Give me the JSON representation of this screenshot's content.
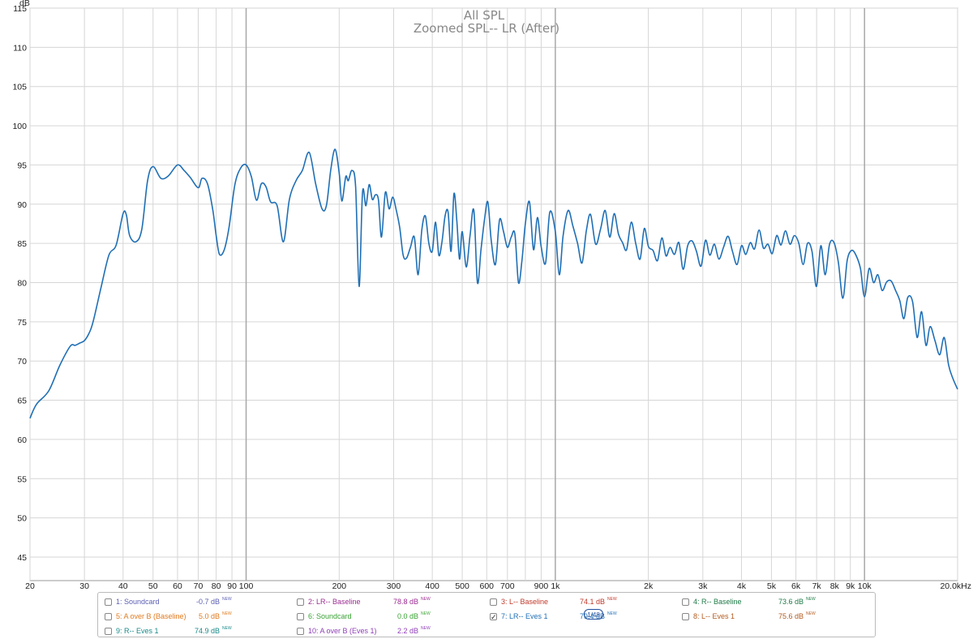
{
  "chart_data": {
    "type": "line",
    "title": "All SPL",
    "subtitle": "Zoomed SPL-- LR (After)",
    "ylabel": "dB",
    "xscale": "log",
    "xlim": [
      20,
      20000
    ],
    "ylim": [
      42,
      115
    ],
    "grid": true,
    "y_ticks": [
      45,
      50,
      55,
      60,
      65,
      70,
      75,
      80,
      85,
      90,
      95,
      100,
      105,
      110,
      115
    ],
    "x_ticks": [
      {
        "v": 20,
        "label": "20"
      },
      {
        "v": 30,
        "label": "30"
      },
      {
        "v": 40,
        "label": "40"
      },
      {
        "v": 50,
        "label": "50"
      },
      {
        "v": 60,
        "label": "60"
      },
      {
        "v": 70,
        "label": "70"
      },
      {
        "v": 80,
        "label": "80"
      },
      {
        "v": 90,
        "label": "90"
      },
      {
        "v": 100,
        "label": "100"
      },
      {
        "v": 200,
        "label": "200"
      },
      {
        "v": 300,
        "label": "300"
      },
      {
        "v": 400,
        "label": "400"
      },
      {
        "v": 500,
        "label": "500"
      },
      {
        "v": 600,
        "label": "600"
      },
      {
        "v": 700,
        "label": "700"
      },
      {
        "v": 900,
        "label": "900"
      },
      {
        "v": 1000,
        "label": "1k"
      },
      {
        "v": 2000,
        "label": "2k"
      },
      {
        "v": 3000,
        "label": "3k"
      },
      {
        "v": 4000,
        "label": "4k"
      },
      {
        "v": 5000,
        "label": "5k"
      },
      {
        "v": 6000,
        "label": "6k"
      },
      {
        "v": 7000,
        "label": "7k"
      },
      {
        "v": 8000,
        "label": "8k"
      },
      {
        "v": 9000,
        "label": "9k"
      },
      {
        "v": 10000,
        "label": "10k"
      },
      {
        "v": 20000,
        "label": "20.0kHz"
      }
    ],
    "series": [
      {
        "color": "#1f6fb5",
        "x": [
          20,
          21,
          23,
          25,
          27,
          28,
          29,
          30,
          31,
          32,
          34,
          36,
          38,
          40,
          41,
          42,
          44,
          46,
          48,
          50,
          53,
          56,
          60,
          63,
          66,
          70,
          72,
          75,
          78,
          80,
          82,
          85,
          88,
          92,
          96,
          100,
          104,
          108,
          112,
          116,
          120,
          126,
          132,
          138,
          145,
          152,
          160,
          168,
          176,
          182,
          188,
          194,
          200,
          204,
          210,
          214,
          220,
          226,
          232,
          238,
          244,
          250,
          256,
          262,
          268,
          274,
          282,
          290,
          298,
          306,
          314,
          322,
          330,
          340,
          350,
          360,
          370,
          380,
          390,
          400,
          410,
          420,
          430,
          440,
          450,
          460,
          470,
          480,
          490,
          500,
          515,
          530,
          545,
          560,
          575,
          590,
          605,
          620,
          640,
          660,
          680,
          700,
          720,
          740,
          760,
          780,
          800,
          825,
          850,
          875,
          900,
          930,
          960,
          1000,
          1030,
          1060,
          1100,
          1140,
          1180,
          1220,
          1260,
          1300,
          1350,
          1400,
          1450,
          1500,
          1550,
          1600,
          1650,
          1700,
          1760,
          1820,
          1880,
          1940,
          2000,
          2070,
          2140,
          2210,
          2280,
          2350,
          2430,
          2510,
          2590,
          2680,
          2770,
          2860,
          2960,
          3060,
          3160,
          3270,
          3380,
          3500,
          3620,
          3740,
          3870,
          4000,
          4130,
          4270,
          4410,
          4560,
          4710,
          4870,
          5030,
          5200,
          5370,
          5550,
          5740,
          5930,
          6130,
          6330,
          6540,
          6760,
          6990,
          7220,
          7460,
          7710,
          7970,
          8230,
          8510,
          8790,
          9080,
          9380,
          9700,
          10000,
          10350,
          10700,
          11050,
          11400,
          11800,
          12200,
          12600,
          13000,
          13400,
          13800,
          14300,
          14800,
          15300,
          15800,
          16300,
          16900,
          17500,
          18100,
          18700,
          19300,
          20000
        ],
        "y": [
          62.7,
          64.5,
          66.2,
          69.5,
          71.9,
          72.0,
          72.3,
          72.6,
          73.5,
          75.0,
          79.5,
          83.5,
          84.8,
          88.8,
          88.6,
          86.0,
          85.2,
          86.8,
          93.0,
          94.8,
          93.3,
          93.6,
          95.0,
          94.3,
          93.4,
          92.1,
          93.3,
          92.6,
          89.3,
          86.0,
          83.6,
          84.2,
          87.0,
          92.5,
          94.6,
          95.0,
          93.5,
          90.5,
          92.6,
          92.2,
          90.3,
          89.8,
          85.2,
          90.6,
          93.0,
          94.3,
          96.6,
          92.5,
          89.4,
          89.9,
          94.5,
          97.0,
          94.0,
          90.4,
          93.5,
          93.0,
          94.3,
          92.2,
          79.5,
          91.5,
          89.8,
          92.5,
          90.6,
          91.2,
          90.5,
          85.8,
          91.5,
          89.4,
          90.9,
          89.2,
          87.0,
          83.5,
          83.1,
          84.5,
          85.8,
          81.0,
          86.7,
          88.5,
          85.0,
          84.0,
          87.7,
          83.5,
          85.2,
          88.5,
          89.0,
          84.0,
          91.3,
          88.0,
          83.0,
          86.5,
          82.0,
          86.0,
          89.2,
          80.0,
          84.2,
          88.0,
          90.3,
          85.5,
          82.3,
          88.0,
          86.5,
          84.5,
          85.8,
          86.2,
          80.0,
          82.8,
          87.5,
          90.3,
          84.2,
          88.3,
          84.6,
          82.5,
          89.0,
          86.5,
          81.0,
          86.0,
          89.2,
          87.2,
          85.0,
          82.5,
          86.6,
          88.7,
          84.9,
          86.8,
          89.2,
          85.8,
          88.8,
          86.2,
          85.1,
          84.2,
          87.7,
          85.0,
          83.0,
          86.9,
          84.6,
          84.1,
          82.8,
          85.7,
          83.4,
          84.5,
          83.6,
          85.1,
          81.7,
          84.7,
          85.3,
          84.0,
          82.1,
          85.4,
          83.5,
          84.9,
          83.0,
          84.5,
          85.9,
          84.0,
          82.3,
          84.7,
          83.6,
          85.1,
          84.3,
          86.7,
          84.4,
          84.9,
          83.7,
          86.0,
          84.8,
          86.6,
          84.9,
          86.0,
          85.0,
          82.3,
          85.0,
          84.0,
          79.5,
          84.7,
          81.0,
          84.9,
          85.1,
          82.6,
          78.0,
          82.8,
          84.1,
          83.5,
          81.8,
          78.2,
          81.8,
          80.0,
          81.0,
          79.0,
          80.1,
          80.2,
          79.0,
          77.7,
          75.4,
          78.1,
          77.6,
          73.0,
          76.3,
          72.0,
          74.4,
          72.6,
          70.8,
          73.0,
          69.5,
          67.8,
          66.4
        ]
      }
    ]
  },
  "legend": [
    {
      "label": "1: Soundcard",
      "value": "-0.7 dB",
      "color": "#5b5fb3",
      "checked": false,
      "new": "NEW"
    },
    {
      "label": "2: LR-- Baseline",
      "value": "78.8 dB",
      "color": "#9b2c91",
      "checked": false,
      "new": "NEW"
    },
    {
      "label": "3: L-- Baseline",
      "value": "74.1 dB",
      "color": "#c0392b",
      "checked": false,
      "new": "NEW"
    },
    {
      "label": "4: R-- Baseline",
      "value": "73.6 dB",
      "color": "#1e7a45",
      "checked": false,
      "new": "NEW"
    },
    {
      "label": "5: A over B (Baseline)",
      "value": "5.0 dB",
      "color": "#e07a1f",
      "checked": false,
      "new": "NEW"
    },
    {
      "label": "6: Soundcard",
      "value": "0.0 dB",
      "color": "#3aa335",
      "checked": false,
      "new": "NEW"
    },
    {
      "label": "7: LR-- Eves 1",
      "value": "79.4 dB",
      "color": "#1f6fb5",
      "checked": true,
      "new": "NEW"
    },
    {
      "label": "8: L-- Eves 1",
      "value": "75.6 dB",
      "color": "#b35a1f",
      "checked": false,
      "new": "NEW"
    },
    {
      "label": "9: R-- Eves 1",
      "value": "74.9 dB",
      "color": "#1a8a8a",
      "checked": false,
      "new": "NEW"
    },
    {
      "label": "10: A over B (Eves 1)",
      "value": "2.2 dB",
      "color": "#8e3fb8",
      "checked": false,
      "new": "NEW"
    }
  ],
  "smoothing_badge": "1/48"
}
